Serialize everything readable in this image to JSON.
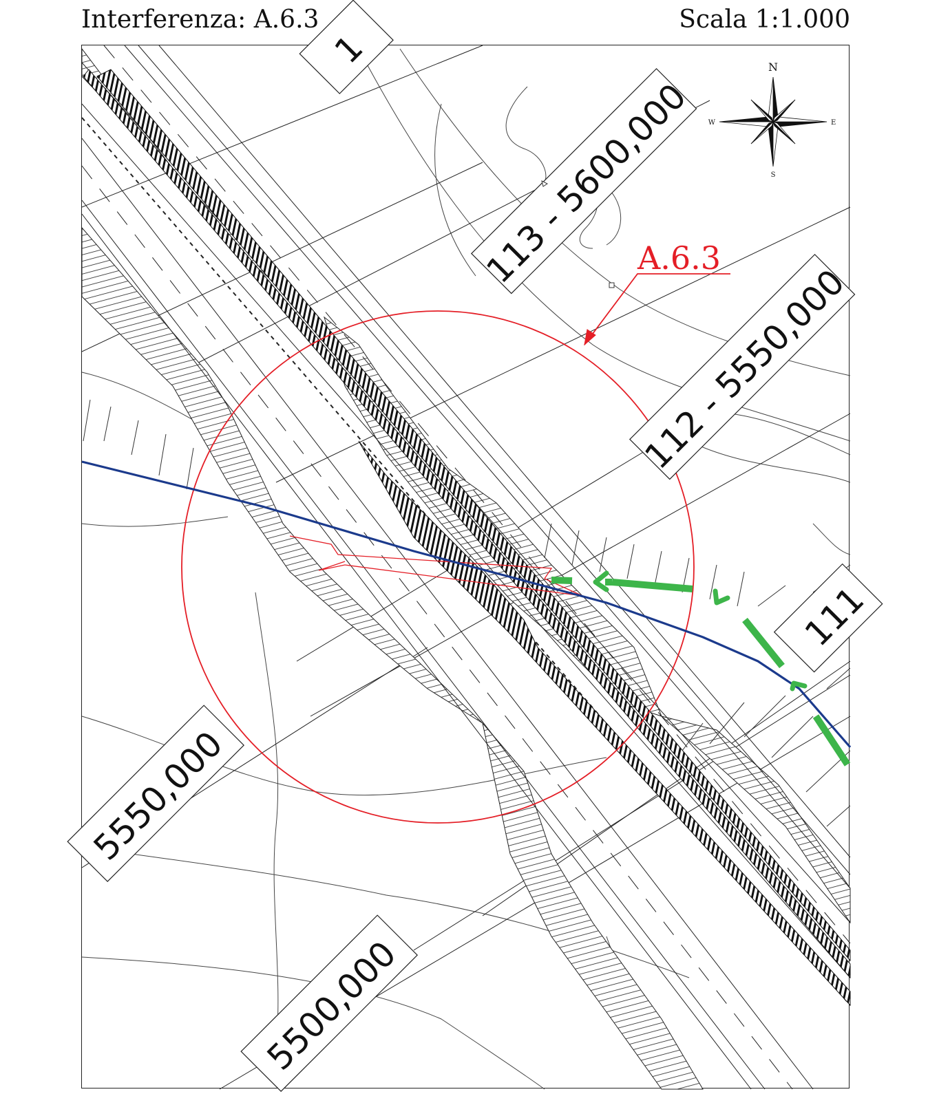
{
  "header": {
    "interference_label": "Interferenza: A.6.3",
    "scale_label": "Scala 1:1.000"
  },
  "map": {
    "callout_label": "A.6.3",
    "chainage_labels": {
      "top_cut": "1",
      "c113": "113 - 5600,000",
      "c112": "112 - 5550,000",
      "c111": "111",
      "c5550": "5550,000",
      "c5500": "5500,000"
    },
    "compass": {
      "north": "N",
      "south": "S",
      "east": "E",
      "west": "W"
    },
    "colors": {
      "interference_circle": "#e41e26",
      "pipeline_blue": "#1b3a8c",
      "green_route": "#3db54a",
      "linework": "#333333"
    }
  }
}
